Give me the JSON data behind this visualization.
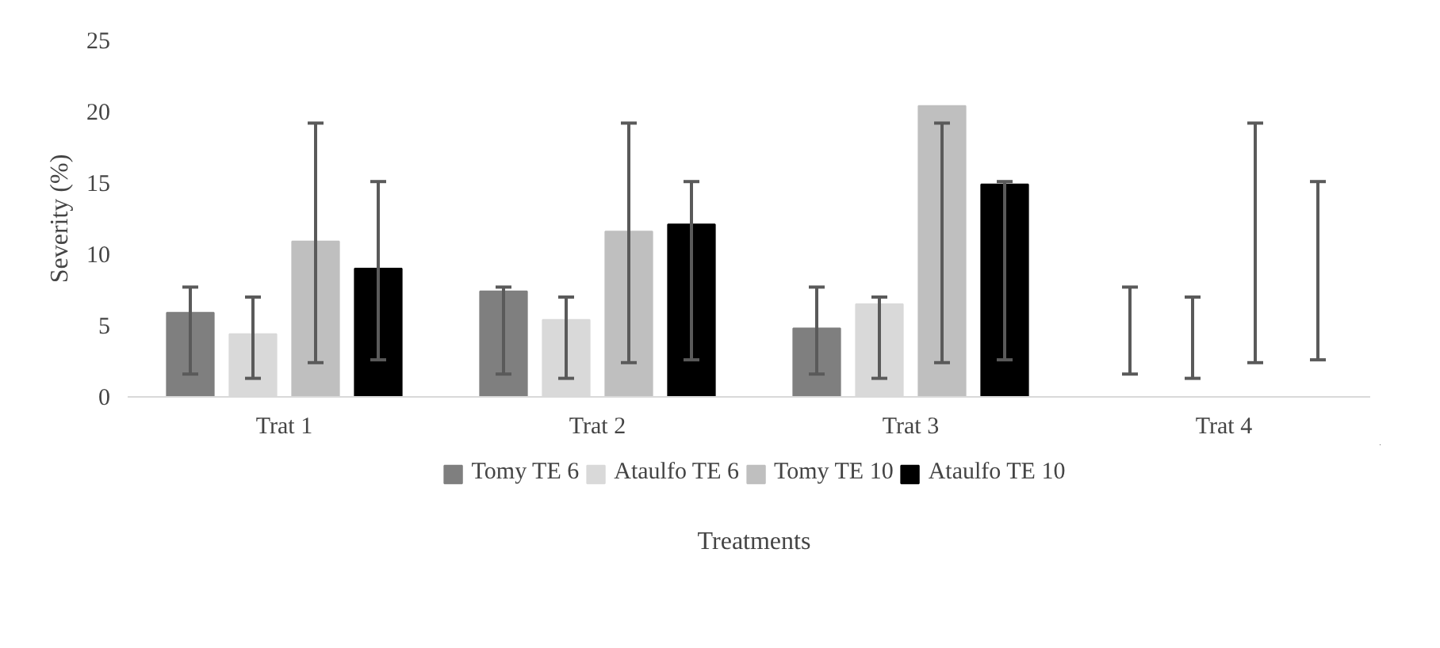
{
  "chart_data": {
    "type": "bar",
    "xlabel": "Treatments",
    "ylabel": "Severity (%)",
    "categories": [
      "Trat 1",
      "Trat 2",
      "Trat 3",
      "Trat 4"
    ],
    "series": [
      {
        "name": "Tomy TE 6",
        "color": "#7f7f7f",
        "values": [
          5.9,
          7.4,
          4.8,
          0
        ],
        "errors": [
          [
            1.6,
            7.7
          ],
          [
            1.6,
            7.7
          ],
          [
            1.6,
            7.7
          ],
          [
            1.6,
            7.7
          ]
        ]
      },
      {
        "name": "Ataulfo TE 6",
        "color": "#d9d9d9",
        "values": [
          4.4,
          5.4,
          6.5,
          0
        ],
        "errors": [
          [
            1.3,
            7.0
          ],
          [
            1.3,
            7.0
          ],
          [
            1.3,
            7.0
          ],
          [
            1.3,
            7.0
          ]
        ]
      },
      {
        "name": "Tomy TE 10",
        "color": "#bfbfbf",
        "values": [
          10.9,
          11.6,
          20.4,
          0
        ],
        "errors": [
          [
            2.4,
            19.2
          ],
          [
            2.4,
            19.2
          ],
          [
            2.4,
            19.2
          ],
          [
            2.4,
            19.2
          ]
        ]
      },
      {
        "name": "Ataulfo TE 10",
        "color": "#000000",
        "values": [
          9.0,
          12.1,
          14.9,
          0
        ],
        "errors": [
          [
            2.6,
            15.1
          ],
          [
            2.6,
            15.1
          ],
          [
            2.6,
            15.1
          ],
          [
            2.6,
            15.1
          ]
        ]
      }
    ],
    "ylim": [
      0,
      25
    ],
    "yticks": [
      0,
      5,
      10,
      15,
      20,
      25
    ],
    "grid": false,
    "legend": "bottom"
  }
}
